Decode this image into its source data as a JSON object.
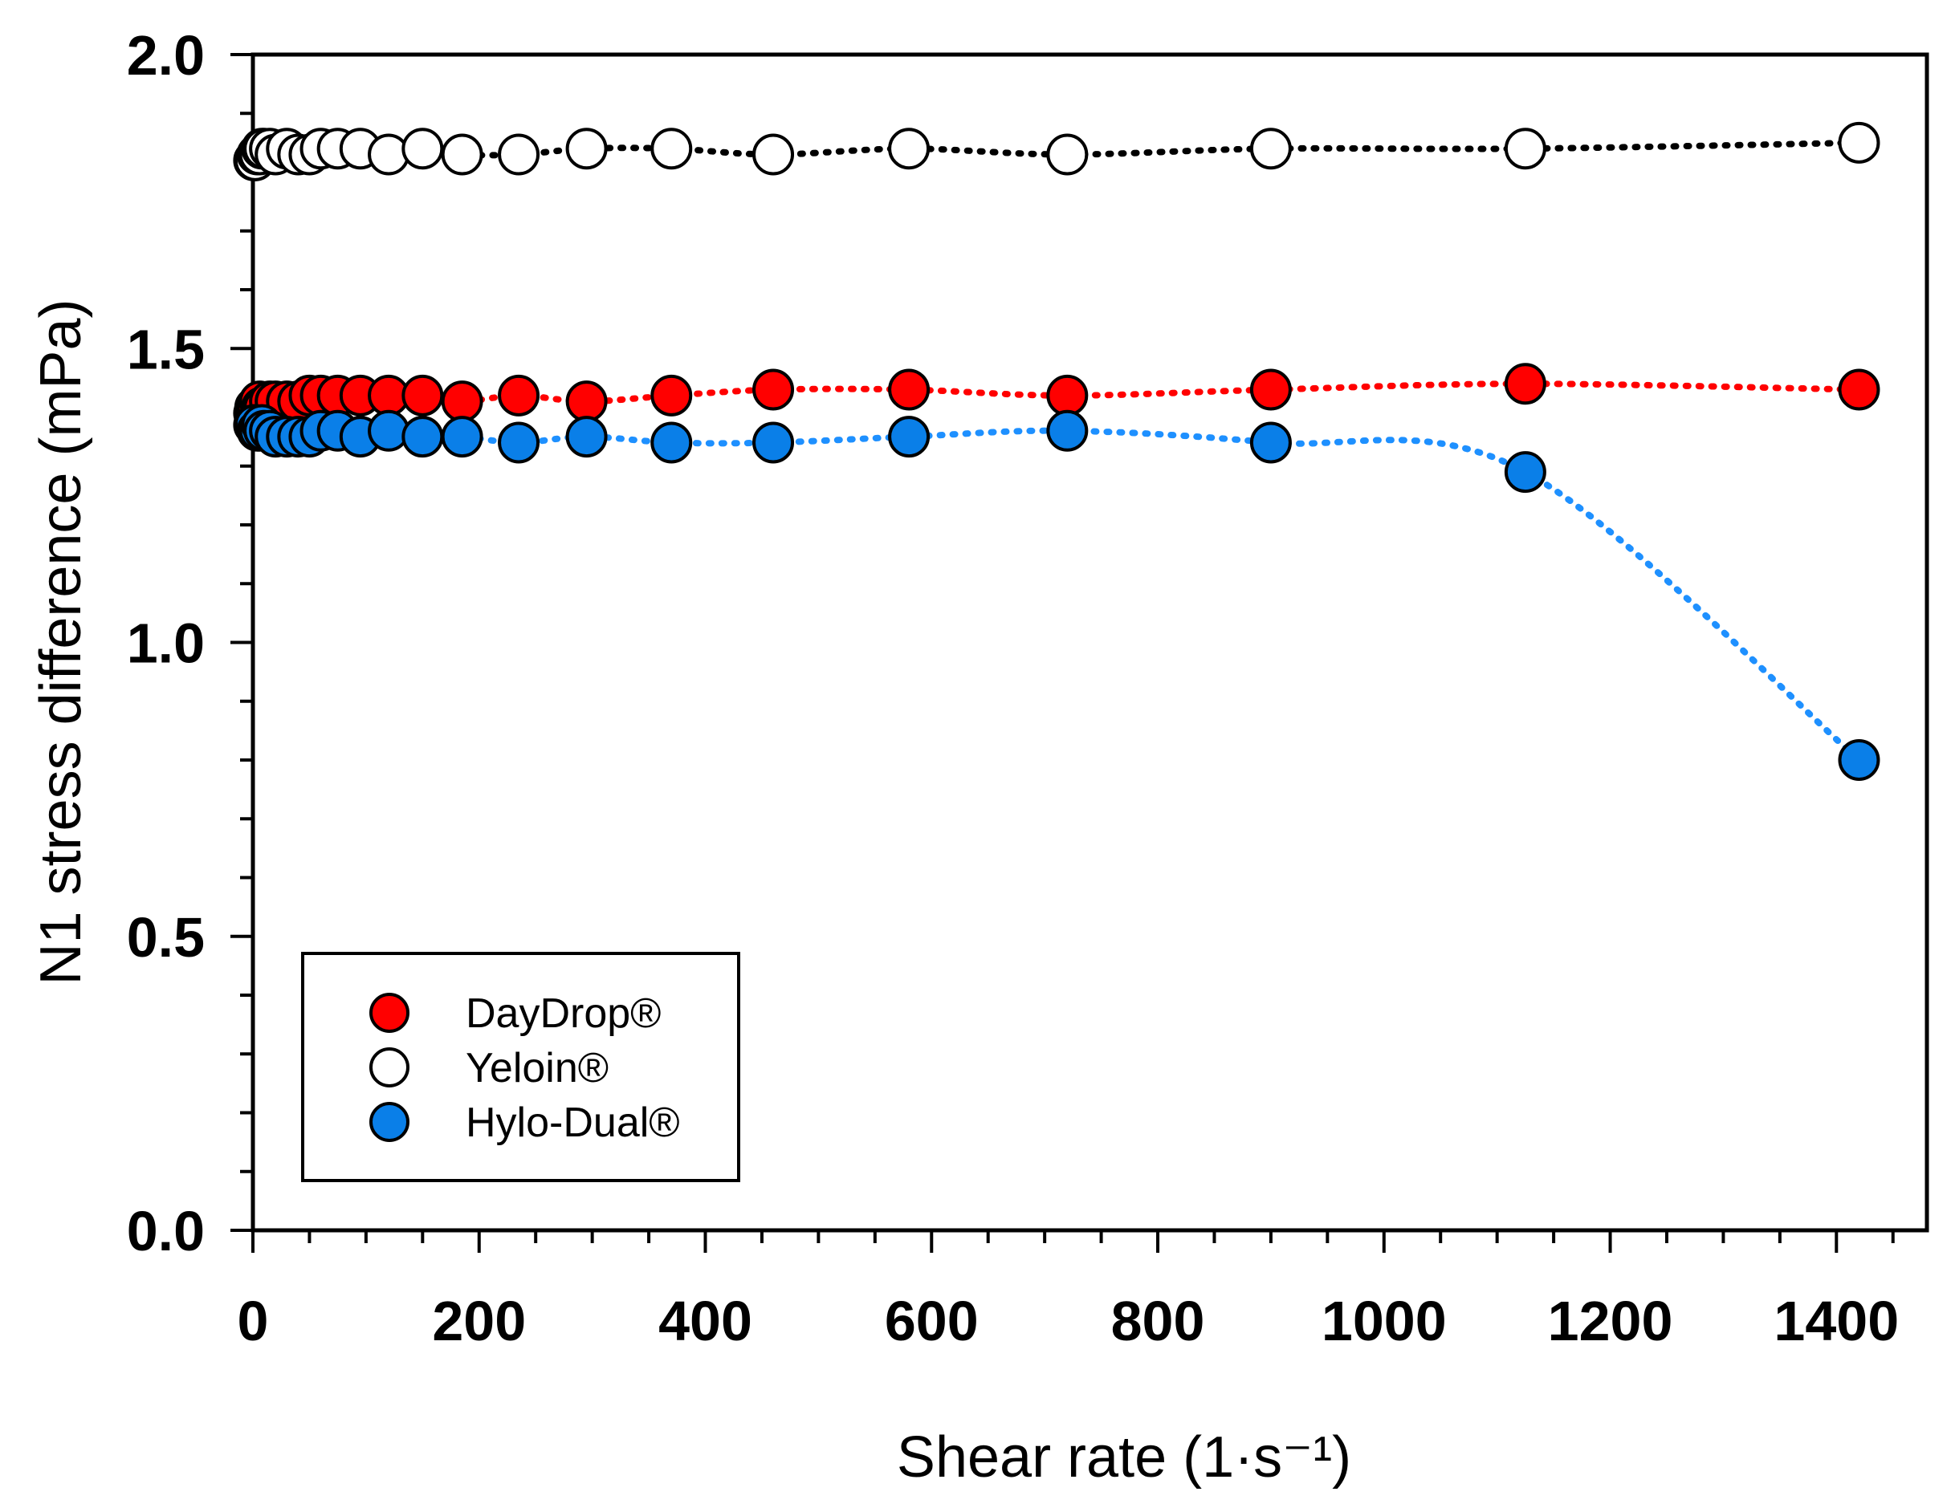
{
  "chart_data": {
    "type": "scatter",
    "title": "",
    "xlabel": "Shear rate (1·s⁻¹)",
    "ylabel": "N1 stress difference (mPa)",
    "xlim": [
      0,
      1480
    ],
    "ylim": [
      0,
      2.0
    ],
    "x_ticks": [
      "0",
      "200",
      "400",
      "600",
      "800",
      "1000",
      "1200",
      "1400"
    ],
    "y_ticks": [
      "0.0",
      "0.5",
      "1.0",
      "1.5",
      "2.0"
    ],
    "grid": false,
    "legend_position": "bottom-left",
    "series": [
      {
        "name": "DayDrop®",
        "color": "#ff0000",
        "line_color": "#ff0000",
        "x": [
          1,
          2,
          4,
          6,
          8,
          10,
          15,
          20,
          30,
          40,
          50,
          60,
          75,
          95,
          120,
          150,
          185,
          235,
          295,
          370,
          460,
          580,
          720,
          900,
          1125,
          1420
        ],
        "y": [
          1.39,
          1.4,
          1.4,
          1.41,
          1.4,
          1.4,
          1.41,
          1.41,
          1.41,
          1.41,
          1.42,
          1.42,
          1.42,
          1.42,
          1.42,
          1.42,
          1.41,
          1.42,
          1.41,
          1.42,
          1.43,
          1.43,
          1.42,
          1.43,
          1.44,
          1.43
        ]
      },
      {
        "name": "Yeloin®",
        "color": "#ffffff",
        "line_color": "#000000",
        "x": [
          1,
          2,
          4,
          6,
          8,
          10,
          15,
          20,
          30,
          40,
          50,
          60,
          75,
          95,
          120,
          150,
          185,
          235,
          295,
          370,
          460,
          580,
          720,
          900,
          1125,
          1420
        ],
        "y": [
          1.82,
          1.82,
          1.83,
          1.83,
          1.84,
          1.84,
          1.84,
          1.83,
          1.84,
          1.83,
          1.83,
          1.84,
          1.84,
          1.84,
          1.83,
          1.84,
          1.83,
          1.83,
          1.84,
          1.84,
          1.83,
          1.84,
          1.83,
          1.84,
          1.84,
          1.85
        ]
      },
      {
        "name": "Hylo-Dual®",
        "color": "#0a7fe8",
        "line_color": "#1e90ff",
        "x": [
          1,
          2,
          4,
          6,
          8,
          10,
          15,
          20,
          30,
          40,
          50,
          60,
          75,
          95,
          120,
          150,
          185,
          235,
          295,
          370,
          460,
          580,
          720,
          900,
          1125,
          1420
        ],
        "y": [
          1.37,
          1.37,
          1.36,
          1.36,
          1.37,
          1.36,
          1.36,
          1.35,
          1.35,
          1.35,
          1.35,
          1.36,
          1.36,
          1.35,
          1.36,
          1.35,
          1.35,
          1.34,
          1.35,
          1.34,
          1.34,
          1.35,
          1.36,
          1.34,
          1.29,
          0.8
        ]
      }
    ]
  }
}
